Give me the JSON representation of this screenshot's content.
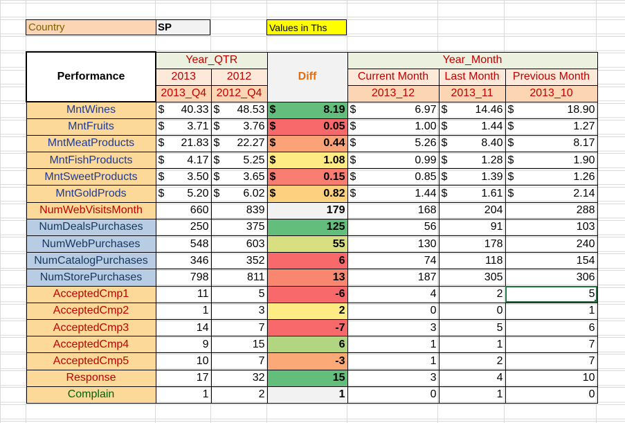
{
  "params": {
    "country_label": "Country",
    "country_value": "SP",
    "values_note": "Values in Ths"
  },
  "headers": {
    "performance": "Performance",
    "year_qtr": "Year_QTR",
    "year_month": "Year_Month",
    "diff": "Diff",
    "y2013": "2013",
    "y2012": "2012",
    "q2013": "2013_Q4",
    "q2012": "2012_Q4",
    "current_month": "Current Month",
    "last_month": "Last Month",
    "previous_month": "Previous Month",
    "m_current": "2013_12",
    "m_last": "2013_11",
    "m_previous": "2013_10"
  },
  "currency_symbol": "$",
  "rows": [
    {
      "label": "MntWines",
      "kind": "mnt",
      "q2013": "40.33",
      "q2012": "48.53",
      "diff": "8.19",
      "diff_color": "#63be7b",
      "cur": "6.97",
      "last": "14.46",
      "prev": "18.90"
    },
    {
      "label": "MntFruits",
      "kind": "mnt",
      "q2013": "3.71",
      "q2012": "3.76",
      "diff": "0.05",
      "diff_color": "#f8696b",
      "cur": "1.00",
      "last": "1.44",
      "prev": "1.27"
    },
    {
      "label": "MntMeatProducts",
      "kind": "mnt",
      "q2013": "21.83",
      "q2012": "22.27",
      "diff": "0.44",
      "diff_color": "#fba276",
      "cur": "5.26",
      "last": "8.40",
      "prev": "8.17"
    },
    {
      "label": "MntFishProducts",
      "kind": "mnt",
      "q2013": "4.17",
      "q2012": "5.25",
      "diff": "1.08",
      "diff_color": "#ffeb84",
      "cur": "0.99",
      "last": "1.28",
      "prev": "1.90"
    },
    {
      "label": "MntSweetProducts",
      "kind": "mnt",
      "q2013": "3.50",
      "q2012": "3.65",
      "diff": "0.15",
      "diff_color": "#f97d70",
      "cur": "0.85",
      "last": "1.39",
      "prev": "1.26"
    },
    {
      "label": "MntGoldProds",
      "kind": "mnt",
      "q2013": "5.20",
      "q2012": "6.02",
      "diff": "0.82",
      "diff_color": "#fdd07f",
      "cur": "1.44",
      "last": "1.61",
      "prev": "2.14"
    },
    {
      "label": "NumWebVisitsMonth",
      "kind": "web",
      "q2013": "660",
      "q2012": "839",
      "diff": "179",
      "diff_color": "#f2f2f2",
      "cur": "168",
      "last": "204",
      "prev": "288"
    },
    {
      "label": "NumDealsPurchases",
      "kind": "num",
      "q2013": "250",
      "q2012": "375",
      "diff": "125",
      "diff_color": "#63be7b",
      "cur": "56",
      "last": "91",
      "prev": "103"
    },
    {
      "label": "NumWebPurchases",
      "kind": "num",
      "q2013": "548",
      "q2012": "603",
      "diff": "55",
      "diff_color": "#d7df81",
      "cur": "130",
      "last": "178",
      "prev": "240"
    },
    {
      "label": "NumCatalogPurchases",
      "kind": "num",
      "q2013": "346",
      "q2012": "352",
      "diff": "6",
      "diff_color": "#f8696b",
      "cur": "74",
      "last": "118",
      "prev": "154"
    },
    {
      "label": "NumStorePurchases",
      "kind": "num",
      "q2013": "798",
      "q2012": "811",
      "diff": "13",
      "diff_color": "#f98770",
      "cur": "187",
      "last": "305",
      "prev": "306"
    },
    {
      "label": "AcceptedCmp1",
      "kind": "acc",
      "q2013": "11",
      "q2012": "5",
      "diff": "-6",
      "diff_color": "#f8696b",
      "cur": "4",
      "last": "2",
      "prev": "5"
    },
    {
      "label": "AcceptedCmp2",
      "kind": "acc",
      "q2013": "1",
      "q2012": "3",
      "diff": "2",
      "diff_color": "#ffeb84",
      "cur": "0",
      "last": "0",
      "prev": "1"
    },
    {
      "label": "AcceptedCmp3",
      "kind": "acc",
      "q2013": "14",
      "q2012": "7",
      "diff": "-7",
      "diff_color": "#f8696b",
      "cur": "3",
      "last": "5",
      "prev": "6"
    },
    {
      "label": "AcceptedCmp4",
      "kind": "acc",
      "q2013": "9",
      "q2012": "15",
      "diff": "6",
      "diff_color": "#b1d580",
      "cur": "1",
      "last": "1",
      "prev": "7"
    },
    {
      "label": "AcceptedCmp5",
      "kind": "acc",
      "q2013": "10",
      "q2012": "7",
      "diff": "-3",
      "diff_color": "#fbaa77",
      "cur": "1",
      "last": "2",
      "prev": "7"
    },
    {
      "label": "Response",
      "kind": "acc",
      "q2013": "17",
      "q2012": "32",
      "diff": "15",
      "diff_color": "#63be7b",
      "cur": "3",
      "last": "4",
      "prev": "10"
    },
    {
      "label": "Complain",
      "kind": "complain",
      "q2013": "1",
      "q2012": "2",
      "diff": "1",
      "diff_color": "#f2f2f2",
      "cur": "0",
      "last": "1",
      "prev": "0"
    }
  ],
  "selected_cell": {
    "row": 11,
    "col": "prev"
  }
}
